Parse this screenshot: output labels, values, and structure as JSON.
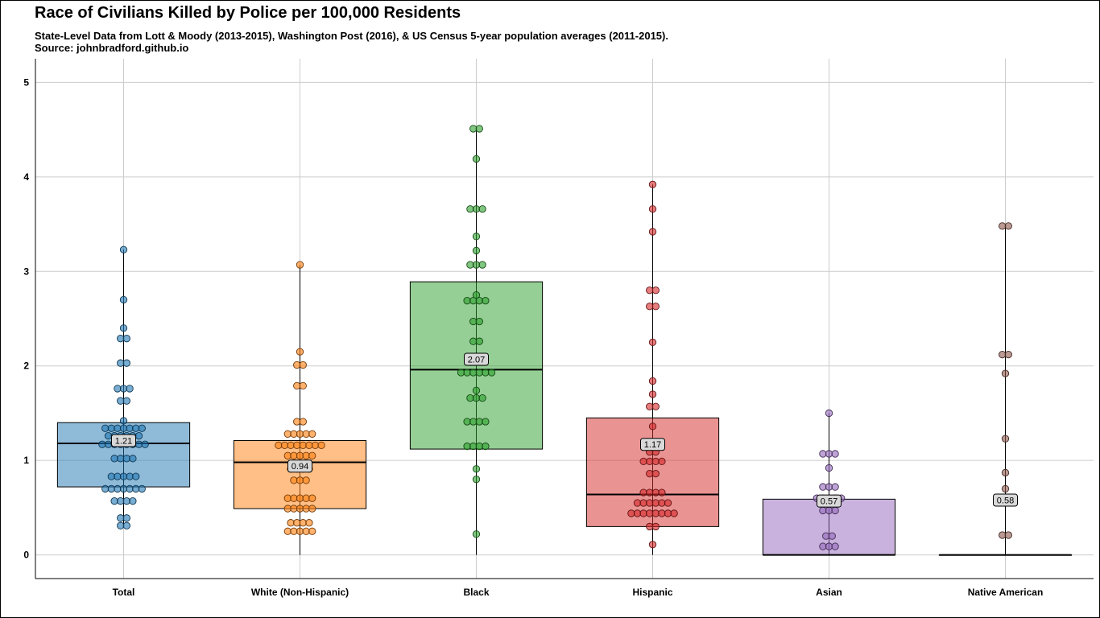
{
  "title": "Race of Civilians Killed by Police per 100,000 Residents",
  "subtitle": "State-Level Data from Lott & Moody (2013-2015), Washington Post (2016), & US Census 5-year population averages (2011-2015).",
  "source": "Source: johnbradford.github.io",
  "chart_data": {
    "type": "box",
    "title": "Race of Civilians Killed by Police per 100,000 Residents",
    "xlabel": "",
    "ylabel": "",
    "ylim": [
      -0.25,
      5.25
    ],
    "yticks": [
      0,
      1,
      2,
      3,
      4,
      5
    ],
    "grid": true,
    "legend": "none",
    "categories": [
      "Total",
      "White (Non-Hispanic)",
      "Black",
      "Hispanic",
      "Asian",
      "Native American"
    ],
    "colors": {
      "Total": "#1f77b4",
      "White (Non-Hispanic)": "#ff7f0e",
      "Black": "#2ca02c",
      "Hispanic": "#d62728",
      "Asian": "#9467bd",
      "Native American": "#8c564b"
    },
    "boxes": [
      {
        "category": "Total",
        "min": 0.31,
        "q1": 0.72,
        "median": 1.18,
        "q3": 1.4,
        "max": 3.23,
        "mean_label": "1.21"
      },
      {
        "category": "White (Non-Hispanic)",
        "min": 0.0,
        "q1": 0.49,
        "median": 0.98,
        "q3": 1.21,
        "max": 3.07,
        "mean_label": "0.94"
      },
      {
        "category": "Black",
        "min": 0.0,
        "q1": 1.12,
        "median": 1.96,
        "q3": 2.89,
        "max": 4.51,
        "mean_label": "2.07"
      },
      {
        "category": "Hispanic",
        "min": 0.0,
        "q1": 0.3,
        "median": 0.64,
        "q3": 1.45,
        "max": 3.92,
        "mean_label": "1.17"
      },
      {
        "category": "Asian",
        "min": 0.0,
        "q1": 0.0,
        "median": 0.0,
        "q3": 0.59,
        "max": 1.5,
        "mean_label": "0.57"
      },
      {
        "category": "Native American",
        "min": 0.0,
        "q1": 0.0,
        "median": 0.0,
        "q3": 0.0,
        "max": 3.48,
        "mean_label": "0.58"
      }
    ],
    "points": {
      "Total": [
        3.23,
        2.7,
        2.4,
        2.29,
        2.29,
        2.03,
        2.03,
        1.76,
        1.76,
        1.76,
        1.63,
        1.63,
        1.42,
        1.34,
        1.34,
        1.34,
        1.34,
        1.34,
        1.34,
        1.34,
        1.26,
        1.26,
        1.26,
        1.26,
        1.26,
        1.26,
        1.17,
        1.17,
        1.17,
        1.17,
        1.17,
        1.17,
        1.17,
        1.17,
        1.02,
        1.02,
        1.02,
        1.02,
        0.83,
        0.83,
        0.83,
        0.83,
        0.83,
        0.7,
        0.7,
        0.7,
        0.7,
        0.7,
        0.7,
        0.7,
        0.57,
        0.57,
        0.57,
        0.57,
        0.39,
        0.39,
        0.31,
        0.31
      ],
      "White (Non-Hispanic)": [
        3.07,
        2.15,
        2.01,
        2.01,
        1.79,
        1.79,
        1.41,
        1.41,
        1.28,
        1.28,
        1.28,
        1.28,
        1.28,
        1.16,
        1.16,
        1.16,
        1.16,
        1.16,
        1.16,
        1.16,
        1.16,
        1.05,
        1.05,
        1.05,
        1.05,
        1.05,
        0.91,
        0.91,
        0.91,
        0.91,
        0.79,
        0.79,
        0.79,
        0.6,
        0.6,
        0.6,
        0.6,
        0.6,
        0.49,
        0.49,
        0.49,
        0.49,
        0.49,
        0.34,
        0.34,
        0.34,
        0.34,
        0.25,
        0.25,
        0.25,
        0.25,
        0.25
      ],
      "Black": [
        4.51,
        4.51,
        4.19,
        3.66,
        3.66,
        3.66,
        3.37,
        3.22,
        3.07,
        3.07,
        3.07,
        2.75,
        2.69,
        2.69,
        2.69,
        2.69,
        2.47,
        2.47,
        2.26,
        2.26,
        2.04,
        2.04,
        2.04,
        1.93,
        1.93,
        1.93,
        1.93,
        1.93,
        1.93,
        1.74,
        1.66,
        1.66,
        1.66,
        1.41,
        1.41,
        1.41,
        1.41,
        1.15,
        1.15,
        1.15,
        1.15,
        0.91,
        0.8,
        0.22
      ],
      "Hispanic": [
        3.92,
        3.66,
        3.42,
        2.8,
        2.8,
        2.63,
        2.63,
        2.25,
        1.84,
        1.7,
        1.57,
        1.57,
        1.36,
        1.18,
        1.09,
        1.09,
        0.99,
        0.99,
        0.99,
        0.99,
        0.86,
        0.86,
        0.66,
        0.66,
        0.66,
        0.66,
        0.55,
        0.55,
        0.55,
        0.55,
        0.55,
        0.55,
        0.44,
        0.44,
        0.44,
        0.44,
        0.44,
        0.44,
        0.44,
        0.44,
        0.3,
        0.3,
        0.11
      ],
      "Asian": [
        1.5,
        1.07,
        1.07,
        1.07,
        0.92,
        0.72,
        0.72,
        0.72,
        0.6,
        0.6,
        0.6,
        0.6,
        0.6,
        0.47,
        0.47,
        0.47,
        0.2,
        0.2,
        0.09,
        0.09,
        0.09
      ],
      "Native American": [
        3.48,
        3.48,
        2.12,
        2.12,
        1.92,
        1.23,
        0.87,
        0.7,
        0.21,
        0.21
      ]
    }
  }
}
